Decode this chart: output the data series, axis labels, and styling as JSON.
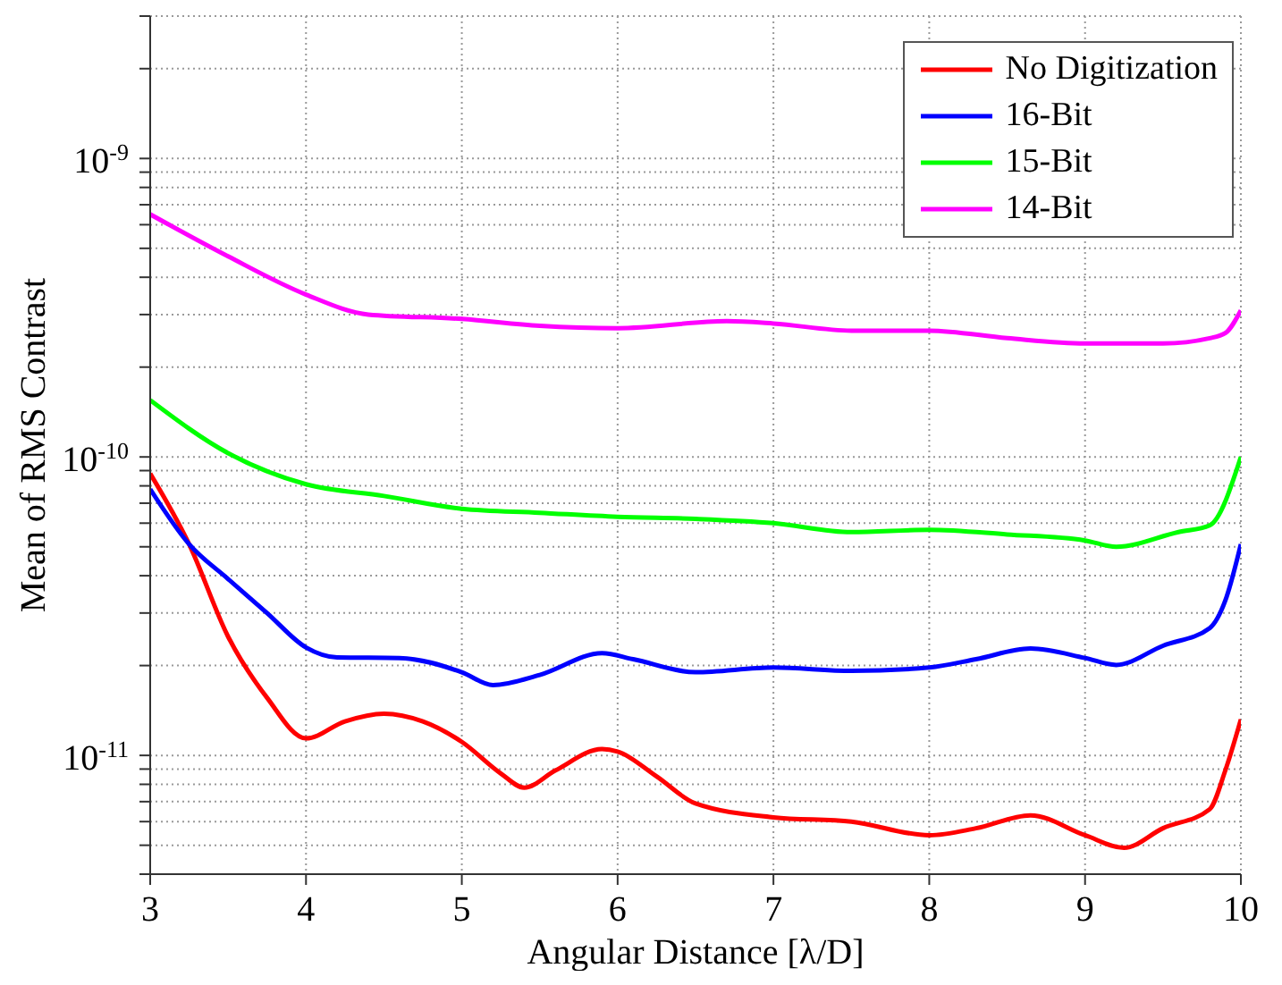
{
  "chart_data": {
    "type": "line",
    "xlabel": "Angular Distance [λ/D]",
    "ylabel": "Mean of RMS Contrast",
    "xlim": [
      3,
      10
    ],
    "xticks": [
      3,
      4,
      5,
      6,
      7,
      8,
      9,
      10
    ],
    "ylim": [
      4e-12,
      3e-09
    ],
    "log": "y",
    "grid": true,
    "legend": "top right",
    "line_style": "solid",
    "marker": "none",
    "yticks": [
      {
        "value": 4e-12,
        "label": null
      },
      {
        "value": 5e-12,
        "label": null
      },
      {
        "value": 6e-12,
        "label": null
      },
      {
        "value": 7e-12,
        "label": null
      },
      {
        "value": 8e-12,
        "label": null
      },
      {
        "value": 9e-12,
        "label": null
      },
      {
        "value": 1e-11,
        "label": "10$^{-11}$"
      },
      {
        "value": 2e-11,
        "label": null
      },
      {
        "value": 3e-11,
        "label": null
      },
      {
        "value": 4e-11,
        "label": null
      },
      {
        "value": 5e-11,
        "label": null
      },
      {
        "value": 6e-11,
        "label": null
      },
      {
        "value": 7e-11,
        "label": null
      },
      {
        "value": 8e-11,
        "label": null
      },
      {
        "value": 9e-11,
        "label": null
      },
      {
        "value": 1e-10,
        "label": "10$^{-10}$"
      },
      {
        "value": 2e-10,
        "label": null
      },
      {
        "value": 3e-10,
        "label": null
      },
      {
        "value": 4e-10,
        "label": null
      },
      {
        "value": 5e-10,
        "label": null
      },
      {
        "value": 6e-10,
        "label": null
      },
      {
        "value": 7e-10,
        "label": null
      },
      {
        "value": 8e-10,
        "label": null
      },
      {
        "value": 9e-10,
        "label": null
      },
      {
        "value": 1e-09,
        "label": "10$^{-9}$"
      },
      {
        "value": 2e-09,
        "label": null
      },
      {
        "value": 3e-09,
        "label": null
      }
    ],
    "series": [
      {
        "name": "No Digitization",
        "color": "#ff0000",
        "x": [
          3,
          3.25,
          3.5,
          3.75,
          4,
          4.25,
          4.5,
          4.75,
          5,
          5.25,
          5.4,
          5.6,
          5.9,
          6,
          6.25,
          6.5,
          7,
          7.5,
          8,
          8.3,
          8.65,
          9,
          9.25,
          9.5,
          9.8,
          9.9,
          10
        ],
        "values": [
          8.8e-11,
          5.1e-11,
          2.5e-11,
          1.56e-11,
          1.14e-11,
          1.3e-11,
          1.38e-11,
          1.3e-11,
          1.11e-11,
          8.7e-12,
          7.8e-12,
          8.9e-12,
          1.05e-11,
          1.03e-11,
          8.5e-12,
          6.9e-12,
          6.2e-12,
          6e-12,
          5.4e-12,
          5.7e-12,
          6.3e-12,
          5.4e-12,
          4.9e-12,
          5.7e-12,
          6.6e-12,
          8.9e-12,
          1.32e-11
        ]
      },
      {
        "name": "16-Bit",
        "color": "#0000ff",
        "x": [
          3,
          3.25,
          3.5,
          3.75,
          4,
          4.2,
          4.6,
          5,
          5.2,
          5.5,
          5.9,
          6.1,
          6.5,
          7,
          7.5,
          8,
          8.3,
          8.65,
          9,
          9.2,
          9.5,
          9.8,
          9.9,
          10
        ],
        "values": [
          7.8e-11,
          5.1e-11,
          3.9e-11,
          3e-11,
          2.3e-11,
          2.13e-11,
          2.12e-11,
          1.9e-11,
          1.72e-11,
          1.86e-11,
          2.2e-11,
          2.1e-11,
          1.9e-11,
          1.97e-11,
          1.92e-11,
          1.97e-11,
          2.1e-11,
          2.28e-11,
          2.12e-11,
          2.01e-11,
          2.33e-11,
          2.67e-11,
          3.3e-11,
          5.1e-11
        ]
      },
      {
        "name": "15-Bit",
        "color": "#00ff00",
        "x": [
          3,
          3.5,
          4,
          4.5,
          5,
          5.5,
          6,
          6.5,
          7,
          7.5,
          8,
          8.5,
          9,
          9.2,
          9.6,
          9.8,
          10
        ],
        "values": [
          1.55e-10,
          1.03e-10,
          8.1e-11,
          7.4e-11,
          6.7e-11,
          6.5e-11,
          6.3e-11,
          6.2e-11,
          6e-11,
          5.6e-11,
          5.7e-11,
          5.5e-11,
          5.25e-11,
          5e-11,
          5.6e-11,
          5.9e-11,
          1e-10
        ]
      },
      {
        "name": "14-Bit",
        "color": "#ff00ff",
        "x": [
          3,
          3.5,
          4,
          4.4,
          5,
          5.5,
          6,
          6.7,
          7,
          7.5,
          8,
          8.5,
          9,
          9.5,
          9.8,
          9.9,
          10
        ],
        "values": [
          6.5e-10,
          4.7e-10,
          3.5e-10,
          3e-10,
          2.9e-10,
          2.75e-10,
          2.7e-10,
          2.85e-10,
          2.8e-10,
          2.65e-10,
          2.65e-10,
          2.5e-10,
          2.4e-10,
          2.4e-10,
          2.5e-10,
          2.6e-10,
          3.1e-10
        ]
      }
    ]
  }
}
